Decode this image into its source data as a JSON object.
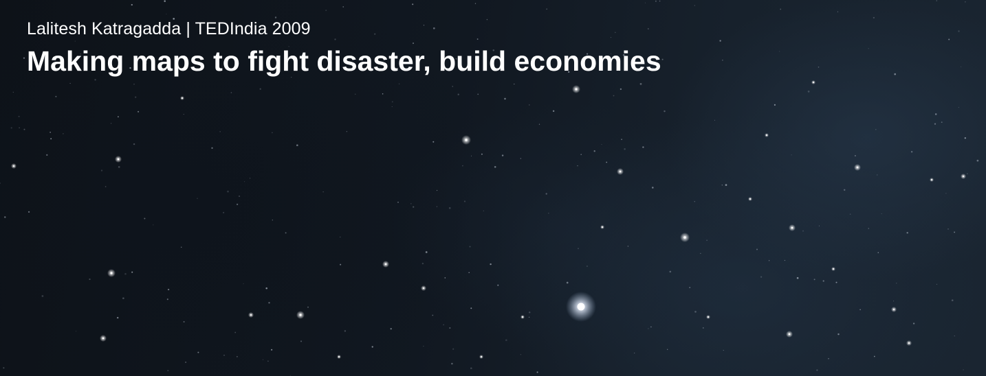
{
  "talk": {
    "speaker": "Lalitesh Katragadda",
    "separator": "|",
    "event": "TEDIndia 2009",
    "title": "Making maps to fight disaster, build economies"
  },
  "background": {
    "description_type": "starfield",
    "colors": {
      "sky_dark": "#0d1218",
      "sky_blue": "#1a2531",
      "star": "#ffffff",
      "text": "#ffffff"
    }
  }
}
